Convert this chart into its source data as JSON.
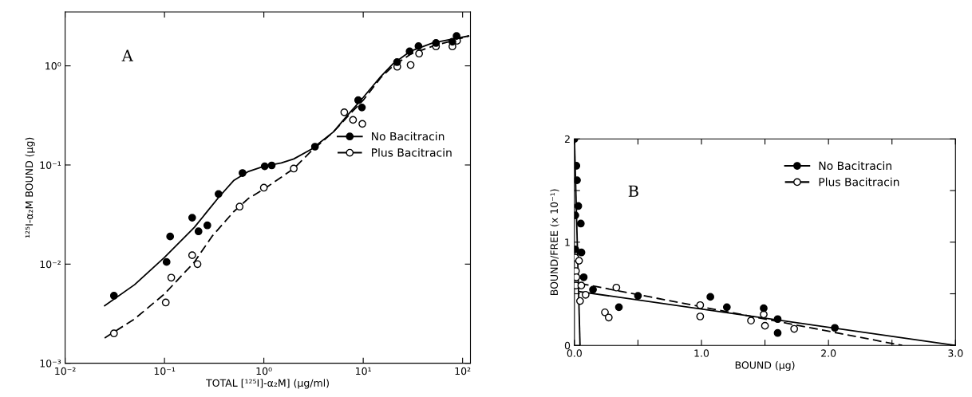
{
  "chart_data": [
    {
      "type": "scatter",
      "xlabel": "TOTAL [¹²⁵I]-α₂M] (μg/ml)",
      "ylabel": "¹²⁵I-α₂M BOUND (μg)",
      "annotations": [
        "A"
      ],
      "log": "xy",
      "xlim": [
        0.01,
        120
      ],
      "ylim": [
        0.001,
        3.5
      ],
      "xticks": [
        {
          "value": 0.01,
          "label": "10⁻²"
        },
        {
          "value": 0.1,
          "label": "10⁻¹"
        },
        {
          "value": 1,
          "label": "10⁰"
        },
        {
          "value": 10,
          "label": "10¹"
        },
        {
          "value": 100,
          "label": "10²"
        }
      ],
      "yticks": [
        {
          "value": 0.001,
          "label": "10⁻³"
        },
        {
          "value": 0.01,
          "label": "10⁻²"
        },
        {
          "value": 0.1,
          "label": "10⁻¹"
        },
        {
          "value": 1,
          "label": "10⁰"
        }
      ],
      "grid": false,
      "legend": "right",
      "marker": "circle",
      "series": [
        {
          "name": "No Bacitracin",
          "color": "#000000",
          "line_style": "solid",
          "x": [
            0.031,
            0.105,
            0.114,
            0.19,
            0.22,
            0.27,
            0.35,
            0.61,
            1.02,
            1.2,
            3.27,
            8.9,
            9.7,
            21.9,
            29.3,
            36,
            54,
            79,
            87
          ],
          "values": [
            0.0048,
            0.0105,
            0.019,
            0.0294,
            0.0214,
            0.0246,
            0.051,
            0.083,
            0.097,
            0.099,
            0.153,
            0.45,
            0.38,
            1.09,
            1.4,
            1.58,
            1.7,
            1.75,
            2.0
          ]
        },
        {
          "name": "Plus Bacitracin",
          "color": "#ffffff",
          "line_style": "dashed",
          "x": [
            0.031,
            0.103,
            0.117,
            0.19,
            0.215,
            0.57,
            1.0,
            2.0,
            6.45,
            7.9,
            9.8,
            22,
            30,
            36.5,
            54,
            79,
            88
          ],
          "values": [
            0.002,
            0.0041,
            0.0073,
            0.0123,
            0.01,
            0.038,
            0.059,
            0.092,
            0.34,
            0.285,
            0.26,
            0.98,
            1.02,
            1.33,
            1.57,
            1.57,
            1.79
          ]
        },
        {
          "type": "line",
          "marker": "none",
          "color": "#000000",
          "line_style": "solid",
          "x": [
            0.025,
            0.05,
            0.1,
            0.2,
            0.35,
            0.5,
            0.7,
            1.0,
            1.5,
            2.0,
            3.0,
            5,
            7,
            10,
            15,
            20,
            30,
            50,
            80,
            115
          ],
          "values": [
            0.0038,
            0.0062,
            0.0117,
            0.0235,
            0.047,
            0.07,
            0.086,
            0.097,
            0.105,
            0.115,
            0.144,
            0.215,
            0.32,
            0.48,
            0.78,
            1.05,
            1.41,
            1.7,
            1.87,
            2.0
          ]
        },
        {
          "type": "line",
          "marker": "none",
          "color": "#000000",
          "line_style": "dashed",
          "x": [
            0.025,
            0.05,
            0.1,
            0.2,
            0.3,
            0.5,
            0.7,
            1.0,
            2.0,
            3,
            5,
            7,
            10,
            15,
            20,
            30,
            50,
            80,
            115
          ],
          "values": [
            0.0018,
            0.0028,
            0.005,
            0.0105,
            0.019,
            0.034,
            0.046,
            0.057,
            0.092,
            0.138,
            0.215,
            0.31,
            0.45,
            0.76,
            1.0,
            1.31,
            1.58,
            1.8,
            2.0
          ]
        }
      ]
    },
    {
      "type": "scatter",
      "xlabel": "BOUND (μg)",
      "ylabel": "BOUND/FREE (x 10⁻¹)",
      "annotations": [
        "B"
      ],
      "xlim": [
        0,
        3.0
      ],
      "ylim": [
        0,
        2
      ],
      "xticks": [
        {
          "value": 0,
          "label": "0.0"
        },
        {
          "value": 0.5,
          "label": null
        },
        {
          "value": 1,
          "label": "1.0"
        },
        {
          "value": 1.5,
          "label": null
        },
        {
          "value": 2,
          "label": "2.0"
        },
        {
          "value": 2.5,
          "label": null
        },
        {
          "value": 3,
          "label": "3.0"
        }
      ],
      "yticks": [
        0,
        {
          "value": 0.5,
          "label": null
        },
        1,
        {
          "value": 1.5,
          "label": null
        },
        2
      ],
      "grid": false,
      "legend": "top right",
      "marker": "circle",
      "series": [
        {
          "name": "No Bacitracin",
          "color": "#000000",
          "line_style": "solid",
          "x": [
            0.0,
            0.015,
            0.02,
            0.03,
            0.007,
            0.05,
            0.007,
            0.055,
            0.073,
            0.146,
            0.35,
            0.5,
            1.07,
            1.2,
            1.49,
            1.6,
            1.6,
            2.05
          ],
          "values": [
            2.0,
            1.74,
            1.6,
            1.35,
            1.26,
            1.18,
            0.93,
            0.9,
            0.66,
            0.54,
            0.37,
            0.48,
            0.47,
            0.37,
            0.36,
            0.255,
            0.12,
            0.17
          ]
        },
        {
          "name": "Plus Bacitracin",
          "color": "#ffffff",
          "line_style": "dashed",
          "x": [
            0.007,
            0.036,
            0.012,
            0.015,
            0.012,
            0.054,
            0.088,
            0.044,
            0.33,
            0.24,
            0.27,
            0.99,
            0.99,
            1.39,
            1.49,
            1.5,
            1.73
          ],
          "values": [
            0.85,
            0.82,
            0.72,
            0.66,
            0.58,
            0.58,
            0.49,
            0.43,
            0.56,
            0.32,
            0.27,
            0.39,
            0.28,
            0.24,
            0.3,
            0.19,
            0.16
          ]
        },
        {
          "type": "line",
          "marker": "none",
          "color": "#000000",
          "line_style": "solid",
          "x": [
            0.0,
            0.044
          ],
          "values": [
            2.0,
            0
          ]
        },
        {
          "type": "line",
          "marker": "none",
          "color": "#000000",
          "line_style": "solid",
          "x": [
            0.044,
            3.0
          ],
          "values": [
            0.52,
            0
          ]
        },
        {
          "type": "line",
          "marker": "none",
          "color": "#000000",
          "line_style": "dashed",
          "x": [
            0.044,
            2.58
          ],
          "values": [
            0.6,
            0
          ]
        }
      ]
    }
  ]
}
